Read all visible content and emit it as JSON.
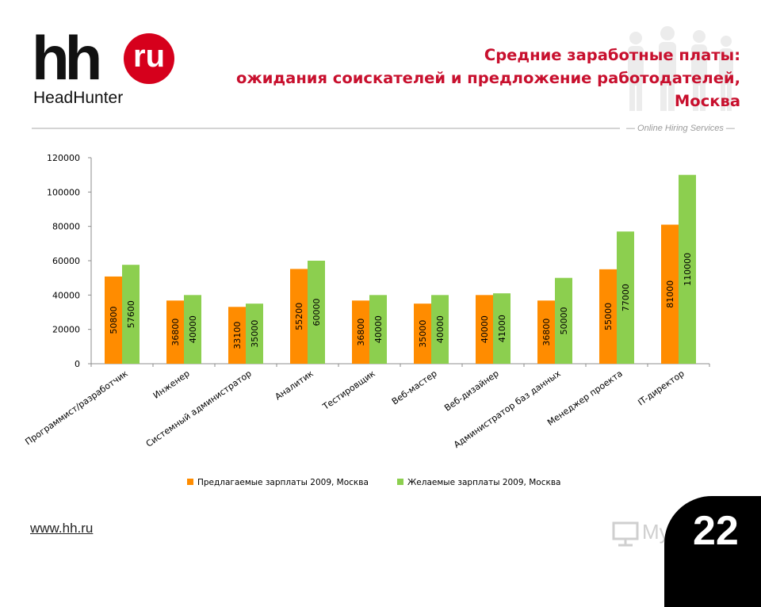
{
  "logo": {
    "hh": "hh",
    "ru": "ru",
    "name": "HeadHunter"
  },
  "title": {
    "line1": "Средние заработные платы:",
    "line2": "ожидания соискателей и предложение работодателей,",
    "line3": "Москва"
  },
  "tagline": "— Online Hiring Services —",
  "footer": {
    "url": "www.hh.ru",
    "page": "22",
    "watermark": "MyShared"
  },
  "colors": {
    "series1": "#ff8c00",
    "series2": "#8ccf4f",
    "title": "#c8102e"
  },
  "chart_data": {
    "type": "bar",
    "categories": [
      "Программист/разработчик",
      "Инженер",
      "Системный администратор",
      "Аналитик",
      "Тестировщик",
      "Веб-мастер",
      "Веб-дизайнер",
      "Администратор баз данных",
      "Менеджер проекта",
      "IT-директор"
    ],
    "series": [
      {
        "name": "Предлагаемые зарплаты 2009, Москва",
        "values": [
          50800,
          36800,
          33100,
          55200,
          36800,
          35000,
          40000,
          36800,
          55000,
          81000
        ]
      },
      {
        "name": "Желаемые зарплаты 2009, Москва",
        "values": [
          57600,
          40000,
          35000,
          60000,
          40000,
          40000,
          41000,
          50000,
          77000,
          110000
        ]
      }
    ],
    "yticks": [
      "0",
      "20000",
      "40000",
      "60000",
      "80000",
      "100000",
      "120000"
    ],
    "ylim": [
      0,
      120000
    ],
    "grid": false,
    "legend": "bottom"
  }
}
